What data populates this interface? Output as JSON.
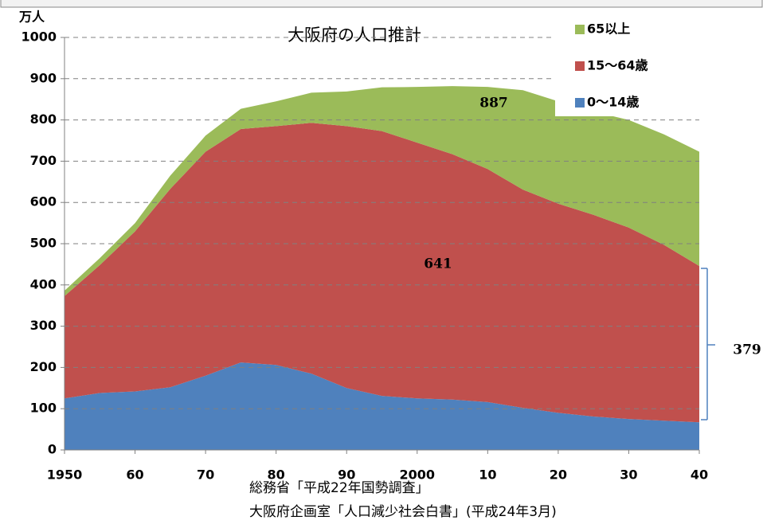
{
  "chart_data": {
    "type": "stacked_area",
    "title": "大阪府の人口推計",
    "y_label": "万人",
    "source": [
      "総務省「平成22年国勢調査」",
      "大阪府企画室「人口減少社会白書」(平成24年3月)"
    ],
    "annotations": [
      "887",
      "641",
      "379"
    ],
    "x": [
      1950,
      1955,
      1960,
      1965,
      1970,
      1975,
      1980,
      1985,
      1990,
      1995,
      2000,
      2005,
      2010,
      2015,
      2020,
      2025,
      2030,
      2035,
      2040
    ],
    "series": [
      {
        "name": "0〜14歳",
        "color": "#4f81bd",
        "values": [
          125,
          138,
          142,
          152,
          180,
          212,
          206,
          185,
          150,
          131,
          125,
          122,
          116,
          102,
          90,
          81,
          75,
          71,
          67
        ]
      },
      {
        "name": "15〜64歳",
        "color": "#c0504d",
        "values": [
          248,
          310,
          388,
          481,
          543,
          566,
          579,
          608,
          635,
          642,
          620,
          595,
          565,
          529,
          507,
          489,
          464,
          426,
          379
        ]
      },
      {
        "name": "65以上",
        "color": "#9bbb59",
        "values": [
          13,
          17,
          20,
          32,
          39,
          49,
          60,
          73,
          84,
          106,
          135,
          165,
          199,
          241,
          248,
          250,
          261,
          268,
          277
        ]
      }
    ],
    "xlim": [
      1950,
      2040
    ],
    "xticks": [
      1950,
      {
        "value": 1960,
        "label": "60"
      },
      {
        "value": 1970,
        "label": "70"
      },
      {
        "value": 1980,
        "label": "80"
      },
      {
        "value": 1990,
        "label": "90"
      },
      2000,
      {
        "value": 2010,
        "label": "10"
      },
      {
        "value": 2020,
        "label": "20"
      },
      {
        "value": 2030,
        "label": "30"
      },
      {
        "value": 2040,
        "label": "40"
      }
    ],
    "ylim": [
      0,
      1000
    ],
    "yticks": [
      0,
      100,
      200,
      300,
      400,
      500,
      600,
      700,
      800,
      900,
      1000
    ],
    "grid": true
  }
}
